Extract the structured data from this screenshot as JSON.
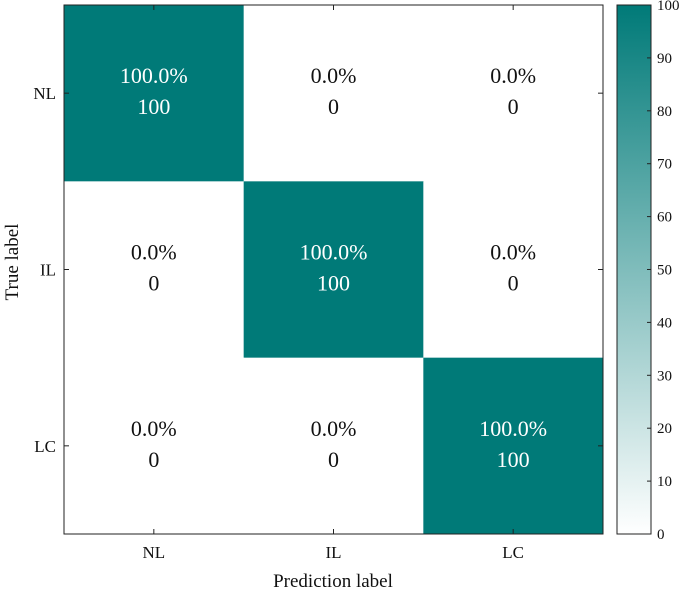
{
  "chart_data": {
    "type": "heatmap",
    "title": "",
    "xlabel": "Prediction label",
    "ylabel": "True label",
    "x_categories": [
      "NL",
      "IL",
      "LC"
    ],
    "y_categories": [
      "NL",
      "IL",
      "LC"
    ],
    "values": [
      [
        100,
        0,
        0
      ],
      [
        0,
        100,
        0
      ],
      [
        0,
        0,
        100
      ]
    ],
    "percent_labels": [
      [
        "100.0%",
        "0.0%",
        "0.0%"
      ],
      [
        "0.0%",
        "100.0%",
        "0.0%"
      ],
      [
        "0.0%",
        "0.0%",
        "100.0%"
      ]
    ],
    "count_labels": [
      [
        "100",
        "0",
        "0"
      ],
      [
        "0",
        "100",
        "0"
      ],
      [
        "0",
        "0",
        "100"
      ]
    ],
    "colorbar": {
      "range": [
        0,
        100
      ],
      "ticks": [
        0,
        10,
        20,
        30,
        40,
        50,
        60,
        70,
        80,
        90,
        100
      ],
      "low_color": "#ffffff",
      "high_color": "#007a78"
    },
    "grid": false,
    "legend": "colorbar-right"
  }
}
